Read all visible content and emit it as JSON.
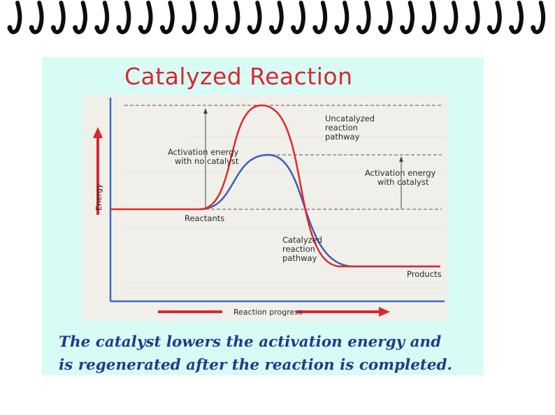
{
  "slide": {
    "title": "Catalyzed Reaction",
    "caption_line1": "The catalyst lowers the activation energy and",
    "caption_line2": "is regenerated after the reaction is completed."
  },
  "diagram": {
    "axis_y_label": "Energy",
    "axis_x_label": "Reaction progress",
    "labels": {
      "uncatalyzed_1": "Uncatalyzed",
      "uncatalyzed_2": "reaction",
      "uncatalyzed_3": "pathway",
      "act_no_cat_1": "Activation energy",
      "act_no_cat_2": "with no catalyst",
      "act_cat_1": "Activation energy",
      "act_cat_2": "with catalyst",
      "reactants": "Reactants",
      "catalyzed_1": "Catalyzed",
      "catalyzed_2": "reaction",
      "catalyzed_3": "pathway",
      "products": "Products"
    },
    "colors": {
      "uncatalyzed_curve": "#e02a2a",
      "catalyzed_curve": "#3a5fb8",
      "axis": "#3f68c2",
      "arrow": "#d9272e",
      "text": "#2a2a2a",
      "paper": "#f1efea"
    },
    "energy_levels": {
      "reactants": 0.5,
      "products": 0.15,
      "uncatalyzed_peak": 1.0,
      "catalyzed_peak": 0.8
    }
  },
  "theme": {
    "binding_ring": "#0d0d0d",
    "slide_background": "#d8fbf6",
    "title_color": "#d9272e",
    "caption_color": "#203b8c"
  }
}
